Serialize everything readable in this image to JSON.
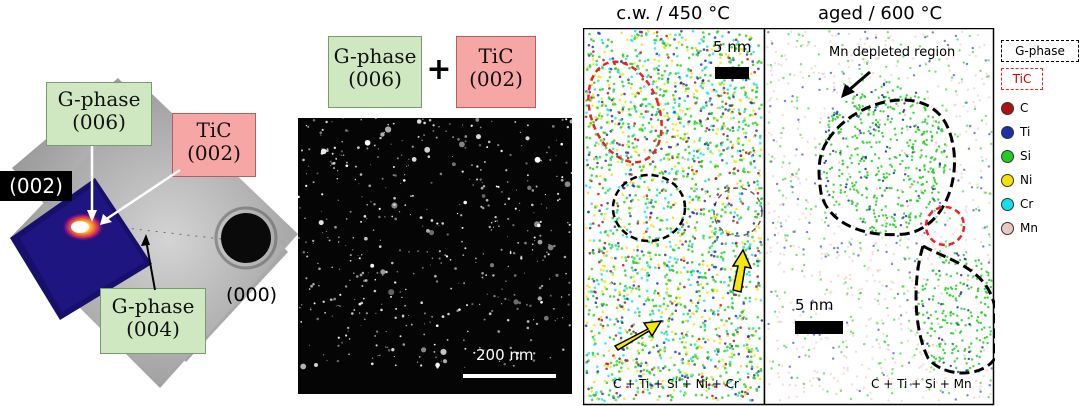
{
  "diffraction": {
    "label_g006_a": "G-phase",
    "label_g006_b": "(006)",
    "label_tic_a": "TiC",
    "label_tic_b": "(002)",
    "label_002": "(002)",
    "label_g004_a": "G-phase",
    "label_g004_b": "(004)",
    "label_000": "(000)"
  },
  "darkfield": {
    "g_a": "G-phase",
    "g_b": "(006)",
    "plus": "+",
    "t_a": "TiC",
    "t_b": "(002)",
    "scale": "200 nm"
  },
  "apt": {
    "title_left": "c.w. / 450 °C",
    "title_right": "aged / 600 °C",
    "scale_left": "5 nm",
    "scale_right": "5 nm",
    "mn_label": "Mn depleted region",
    "caption_left": "C + Ti + Si + Ni + Cr",
    "caption_right": "C + Ti + Si + Mn"
  },
  "legend": {
    "gphase": "G-phase",
    "tic": "TiC",
    "items": [
      {
        "label": "C",
        "color": "#b01010"
      },
      {
        "label": "Ti",
        "color": "#1c2fa8"
      },
      {
        "label": "Si",
        "color": "#22cc22"
      },
      {
        "label": "Ni",
        "color": "#f2e20c"
      },
      {
        "label": "Cr",
        "color": "#12e2e8"
      },
      {
        "label": "Mn",
        "color": "#e8c9c0"
      }
    ]
  }
}
